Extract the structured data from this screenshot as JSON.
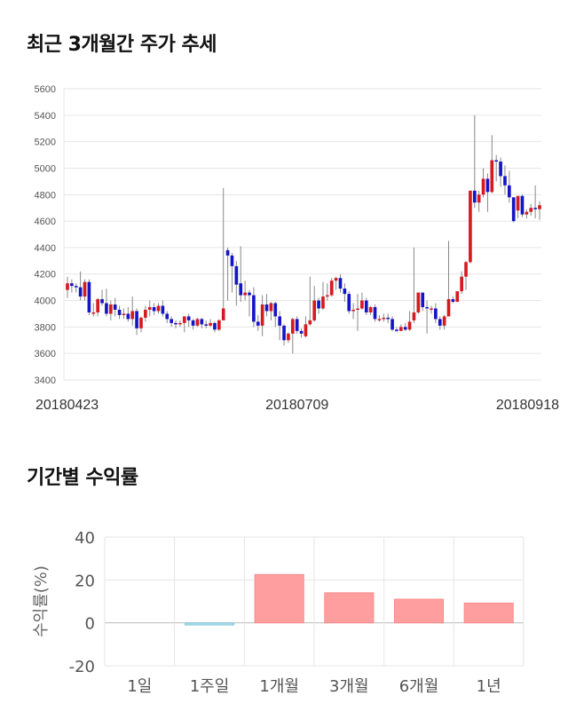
{
  "sections": {
    "price_title": "최근 3개월간 주가 추세",
    "return_title": "기간별 수익률"
  },
  "colors": {
    "up": "#d71920",
    "down": "#1515c8",
    "bar_positive": "#ff9e9e",
    "bar_negative": "#a8dce8",
    "grid": "#e6e6e6"
  },
  "chart_data": [
    {
      "type": "candlestick",
      "title": "최근 3개월간 주가 추세",
      "ylim": [
        3400,
        5600
      ],
      "yticks": [
        3400,
        3600,
        3800,
        4000,
        4200,
        4400,
        4600,
        4800,
        5000,
        5200,
        5400,
        5600
      ],
      "xtick_labels": [
        {
          "index": 0,
          "label": "20180423"
        },
        {
          "index": 53,
          "label": "20180709"
        },
        {
          "index": 103,
          "label": "20180918"
        }
      ],
      "grid": true,
      "candles": [
        [
          4080,
          4130,
          4180,
          4020
        ],
        [
          4130,
          4110,
          4160,
          4060
        ],
        [
          4110,
          4100,
          4130,
          4060
        ],
        [
          4100,
          4030,
          4220,
          4000
        ],
        [
          4030,
          4140,
          4160,
          4000
        ],
        [
          4140,
          3910,
          4160,
          3890
        ],
        [
          3910,
          3910,
          3980,
          3880
        ],
        [
          3910,
          4010,
          4020,
          3880
        ],
        [
          4010,
          3980,
          4080,
          3960
        ],
        [
          3980,
          3900,
          4090,
          3880
        ],
        [
          3900,
          3970,
          4000,
          3850
        ],
        [
          3970,
          3930,
          4020,
          3880
        ],
        [
          3930,
          3890,
          3960,
          3860
        ],
        [
          3890,
          3900,
          3940,
          3860
        ],
        [
          3900,
          3860,
          3950,
          3840
        ],
        [
          3860,
          3920,
          4030,
          3810
        ],
        [
          3920,
          3790,
          3940,
          3740
        ],
        [
          3790,
          3870,
          3880,
          3760
        ],
        [
          3870,
          3930,
          3960,
          3840
        ],
        [
          3930,
          3950,
          4000,
          3880
        ],
        [
          3950,
          3920,
          3980,
          3890
        ],
        [
          3920,
          3960,
          3980,
          3900
        ],
        [
          3960,
          3900,
          4000,
          3880
        ],
        [
          3900,
          3860,
          3920,
          3830
        ],
        [
          3860,
          3830,
          3880,
          3800
        ],
        [
          3830,
          3820,
          3850,
          3790
        ],
        [
          3820,
          3830,
          3850,
          3800
        ],
        [
          3830,
          3880,
          3880,
          3760
        ],
        [
          3880,
          3850,
          3900,
          3800
        ],
        [
          3850,
          3810,
          3860,
          3780
        ],
        [
          3810,
          3860,
          3870,
          3800
        ],
        [
          3860,
          3820,
          3870,
          3790
        ],
        [
          3820,
          3810,
          3850,
          3790
        ],
        [
          3810,
          3830,
          3860,
          3800
        ],
        [
          3830,
          3780,
          3840,
          3760
        ],
        [
          3780,
          3850,
          3860,
          3770
        ],
        [
          3850,
          3940,
          4850,
          3930
        ],
        [
          4380,
          4340,
          4400,
          4000
        ],
        [
          4340,
          4260,
          4360,
          4060
        ],
        [
          4260,
          4120,
          4300,
          3960
        ],
        [
          4130,
          4040,
          4410,
          3990
        ],
        [
          4040,
          4060,
          4150,
          4000
        ],
        [
          4060,
          4040,
          4080,
          3880
        ],
        [
          4040,
          3840,
          4100,
          3800
        ],
        [
          3840,
          3810,
          3890,
          3770
        ],
        [
          3810,
          3970,
          4040,
          3730
        ],
        [
          3970,
          3920,
          4050,
          3880
        ],
        [
          3920,
          3980,
          3990,
          3850
        ],
        [
          3980,
          3880,
          3990,
          3800
        ],
        [
          3880,
          3810,
          3920,
          3700
        ],
        [
          3810,
          3700,
          3820,
          3660
        ],
        [
          3700,
          3750,
          3760,
          3680
        ],
        [
          3750,
          3860,
          3870,
          3600
        ],
        [
          3860,
          3770,
          3880,
          3750
        ],
        [
          3770,
          3750,
          3790,
          3720
        ],
        [
          3730,
          3820,
          3880,
          3720
        ],
        [
          3820,
          3850,
          4180,
          3810
        ],
        [
          3850,
          4000,
          4110,
          3840
        ],
        [
          4000,
          3940,
          4020,
          3900
        ],
        [
          3940,
          4030,
          4140,
          3930
        ],
        [
          4030,
          4040,
          4130,
          4000
        ],
        [
          4040,
          4150,
          4170,
          4030
        ],
        [
          4150,
          4170,
          4180,
          4080
        ],
        [
          4170,
          4090,
          4200,
          4060
        ],
        [
          4090,
          4050,
          4130,
          3990
        ],
        [
          4050,
          3920,
          4070,
          3900
        ],
        [
          3920,
          3930,
          3980,
          3860
        ],
        [
          3930,
          3940,
          4050,
          3770
        ],
        [
          3940,
          4000,
          4060,
          3930
        ],
        [
          4000,
          3910,
          4020,
          3890
        ],
        [
          3910,
          3950,
          3960,
          3890
        ],
        [
          3950,
          3860,
          3970,
          3840
        ],
        [
          3860,
          3860,
          3890,
          3840
        ],
        [
          3860,
          3870,
          3900,
          3840
        ],
        [
          3870,
          3860,
          3900,
          3830
        ],
        [
          3860,
          3780,
          3880,
          3770
        ],
        [
          3780,
          3770,
          3800,
          3760
        ],
        [
          3770,
          3800,
          3820,
          3780
        ],
        [
          3800,
          3780,
          3830,
          3770
        ],
        [
          3780,
          3840,
          3920,
          3770
        ],
        [
          3850,
          3910,
          4400,
          3830
        ],
        [
          3910,
          4060,
          4060,
          3900
        ],
        [
          4060,
          3950,
          4060,
          3920
        ],
        [
          3950,
          3940,
          4000,
          3750
        ],
        [
          3940,
          3940,
          3960,
          3900
        ],
        [
          3940,
          3860,
          3980,
          3830
        ],
        [
          3860,
          3810,
          3880,
          3780
        ],
        [
          3810,
          3880,
          3890,
          3780
        ],
        [
          3880,
          4010,
          4450,
          3990
        ],
        [
          4010,
          3990,
          4030,
          3980
        ],
        [
          3990,
          4070,
          4070,
          3990
        ],
        [
          4070,
          4180,
          4220,
          4050
        ],
        [
          4180,
          4290,
          4300,
          4080
        ],
        [
          4290,
          4830,
          4830,
          4280
        ],
        [
          4830,
          4740,
          5400,
          4700
        ],
        [
          4740,
          4800,
          4830,
          4670
        ],
        [
          4800,
          4920,
          5000,
          4780
        ],
        [
          4920,
          4820,
          4960,
          4670
        ],
        [
          4820,
          5060,
          5250,
          4810
        ],
        [
          5060,
          5050,
          5100,
          4900
        ],
        [
          5050,
          4940,
          5080,
          4860
        ],
        [
          4940,
          4870,
          5020,
          4800
        ],
        [
          4870,
          4780,
          4980,
          4740
        ],
        [
          4780,
          4600,
          4740,
          4590
        ],
        [
          4680,
          4790,
          4790,
          4620
        ],
        [
          4790,
          4650,
          4800,
          4630
        ],
        [
          4650,
          4670,
          4690,
          4620
        ],
        [
          4670,
          4700,
          4730,
          4640
        ],
        [
          4700,
          4690,
          4870,
          4620
        ],
        [
          4690,
          4720,
          4750,
          4610
        ]
      ]
    },
    {
      "type": "bar",
      "title": "기간별 수익률",
      "ylabel": "수익률(%)",
      "ylim": [
        -20,
        40
      ],
      "yticks": [
        -20,
        0,
        20,
        40
      ],
      "categories": [
        "1일",
        "1주일",
        "1개월",
        "3개월",
        "6개월",
        "1년"
      ],
      "values": [
        0,
        -1.0,
        22.5,
        14.0,
        11.0,
        9.2
      ],
      "grid": true
    }
  ]
}
